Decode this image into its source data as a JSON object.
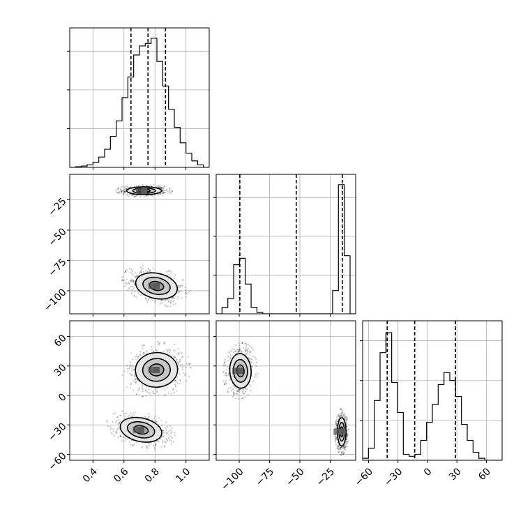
{
  "chart_data": {
    "type": "corner",
    "parameters": [
      {
        "id": "p0",
        "range": [
          0.25,
          1.15
        ],
        "ticks": [
          0.4,
          0.6,
          0.8,
          1.0
        ],
        "tick_labels": [
          "0.4",
          "0.6",
          "0.8",
          "1.0"
        ]
      },
      {
        "id": "p1",
        "range": [
          -119,
          -4
        ],
        "ticks": [
          -100,
          -75,
          -50,
          -25
        ],
        "tick_labels": [
          "−100",
          "−75",
          "−50",
          "−25"
        ]
      },
      {
        "id": "p2",
        "range": [
          -66,
          76
        ],
        "ticks": [
          -60,
          -30,
          0,
          30,
          60
        ],
        "tick_labels": [
          "−60",
          "−30",
          "0",
          "30",
          "60"
        ]
      }
    ],
    "histograms": [
      {
        "param": "p0",
        "bin_edges": [
          0.25,
          0.2875,
          0.325,
          0.3625,
          0.4,
          0.4375,
          0.475,
          0.5125,
          0.55,
          0.5875,
          0.625,
          0.6625,
          0.7,
          0.7375,
          0.775,
          0.8125,
          0.85,
          0.8875,
          0.925,
          0.9625,
          1.0,
          1.0375,
          1.075,
          1.1125,
          1.15
        ],
        "counts": [
          0,
          0.005,
          0.01,
          0.02,
          0.04,
          0.08,
          0.14,
          0.24,
          0.36,
          0.54,
          0.7,
          0.87,
          0.94,
          0.96,
          1.0,
          0.82,
          0.63,
          0.45,
          0.31,
          0.19,
          0.11,
          0.05,
          0.02,
          0.0
        ],
        "quantiles": [
          0.645,
          0.755,
          0.868
        ],
        "ymax": 1.08,
        "yticks": [
          0.3,
          0.6,
          0.9
        ]
      },
      {
        "param": "p1",
        "bin_edges": [
          -119,
          -114.2,
          -109.4,
          -104.6,
          -99.8,
          -95,
          -90.2,
          -85.4,
          -80.6,
          -75.8,
          -71,
          -66.2,
          -61.4,
          -56.6,
          -51.8,
          -47,
          -42.2,
          -37.4,
          -32.6,
          -27.8,
          -23,
          -18.2,
          -13.4,
          -8.6,
          -3.8
        ],
        "counts": [
          0,
          0.05,
          0.12,
          0.38,
          0.43,
          0.23,
          0.05,
          0.01,
          0.0,
          0.0,
          0.0,
          0.0,
          0.0,
          0.0,
          0.0,
          0.0,
          0.0,
          0.0,
          0.0,
          0.0,
          0.18,
          1.0,
          0.45,
          0.0
        ],
        "quantiles": [
          -99.5,
          -53,
          -15
        ],
        "ymax": 1.08,
        "yticks": [
          0.3,
          0.6,
          0.9
        ]
      },
      {
        "param": "p2",
        "bin_edges": [
          -66,
          -60.08,
          -54.17,
          -48.25,
          -42.33,
          -36.42,
          -30.5,
          -24.58,
          -18.67,
          -12.75,
          -6.83,
          -0.92,
          5.0,
          10.92,
          16.83,
          22.75,
          28.67,
          34.58,
          40.5,
          46.42,
          52.33,
          58.25,
          64.17,
          70.08,
          76
        ],
        "counts": [
          0.01,
          0.06,
          0.3,
          0.54,
          0.64,
          0.39,
          0.24,
          0.03,
          0.02,
          0.03,
          0.1,
          0.19,
          0.28,
          0.38,
          0.44,
          0.4,
          0.32,
          0.18,
          0.1,
          0.04,
          0.01,
          0.0,
          0.0,
          0.0
        ],
        "quantiles": [
          -41,
          -13,
          28.5
        ],
        "ymax": 0.7,
        "yticks": [
          0.2,
          0.4,
          0.6
        ]
      }
    ],
    "scatter_panels": [
      {
        "x_param": "p0",
        "y_param": "p1",
        "modes": [
          {
            "center": [
              0.73,
              -17.5
            ],
            "spread": [
              0.07,
              2.0
            ],
            "corr": 0.0,
            "n": 650,
            "core_scale": 0.6
          },
          {
            "center": [
              0.81,
              -96
            ],
            "spread": [
              0.085,
              6.5
            ],
            "corr": -0.35,
            "n": 650,
            "core_scale": 0.6
          }
        ],
        "contour_levels": [
          0.55,
          1.05,
          1.6
        ]
      },
      {
        "x_param": "p0",
        "y_param": "p2",
        "modes": [
          {
            "center": [
              0.81,
              26
            ],
            "spread": [
              0.085,
              11
            ],
            "corr": 0.1,
            "n": 650,
            "core_scale": 0.6
          },
          {
            "center": [
              0.71,
              -35
            ],
            "spread": [
              0.085,
              7.5
            ],
            "corr": -0.35,
            "n": 650,
            "core_scale": 0.6
          }
        ],
        "contour_levels": [
          0.55,
          1.05,
          1.6
        ]
      },
      {
        "x_param": "p1",
        "y_param": "p2",
        "modes": [
          {
            "center": [
              -99,
              25
            ],
            "spread": [
              5.5,
              11
            ],
            "corr": 0.1,
            "n": 650,
            "core_scale": 0.6
          },
          {
            "center": [
              -15.5,
              -37
            ],
            "spread": [
              2.2,
              9
            ],
            "corr": 0.0,
            "n": 650,
            "core_scale": 0.6
          }
        ],
        "contour_levels": [
          0.55,
          1.05,
          1.6
        ]
      }
    ],
    "grid": true
  }
}
